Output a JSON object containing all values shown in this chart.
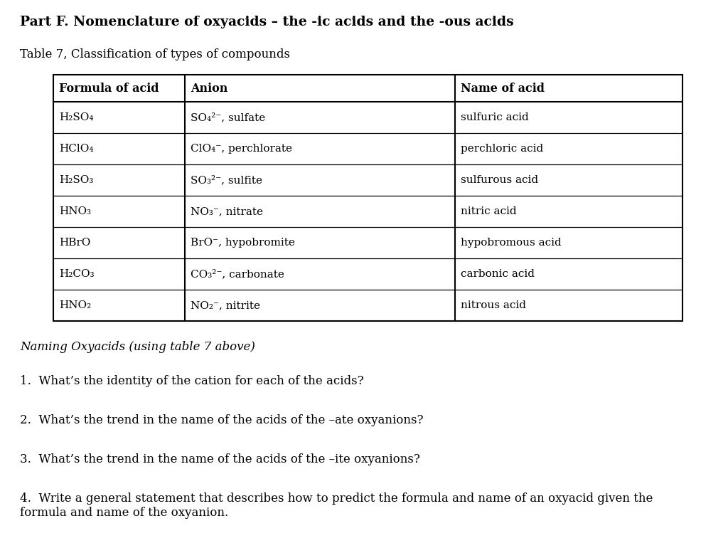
{
  "title": "Part F. Nomenclature of oxyacids – the -ic acids and the -ous acids",
  "subtitle": "Table 7, Classification of types of compounds",
  "col_headers": [
    "Formula of acid",
    "Anion",
    "Name of acid"
  ],
  "table_data": [
    [
      "H₂SO₄",
      "SO₄²⁻, sulfate",
      "sulfuric acid"
    ],
    [
      "HClO₄",
      "ClO₄⁻, perchlorate",
      "perchloric acid"
    ],
    [
      "H₂SO₃",
      "SO₃²⁻, sulfite",
      "sulfurous acid"
    ],
    [
      "HNO₃",
      "NO₃⁻, nitrate",
      "nitric acid"
    ],
    [
      "HBrO",
      "BrO⁻, hypobromite",
      "hypobromous acid"
    ],
    [
      "H₂CO₃",
      "CO₃²⁻, carbonate",
      "carbonic acid"
    ],
    [
      "HNO₂",
      "NO₂⁻, nitrite",
      "nitrous acid"
    ]
  ],
  "section_title": "Naming Oxyacids (using table 7 above)",
  "questions": [
    "1.  What’s the identity of the cation for each of the acids?",
    "2.  What’s the trend in the name of the acids of the –ate oxyanions?",
    "3.  What’s the trend in the name of the acids of the –ite oxyanions?",
    "4.  Write a general statement that describes how to predict the formula and name of an oxyacid given the\nformula and name of the oxyanion."
  ],
  "bg_color": "#ffffff",
  "text_color": "#000000",
  "table_border_color": "#000000"
}
